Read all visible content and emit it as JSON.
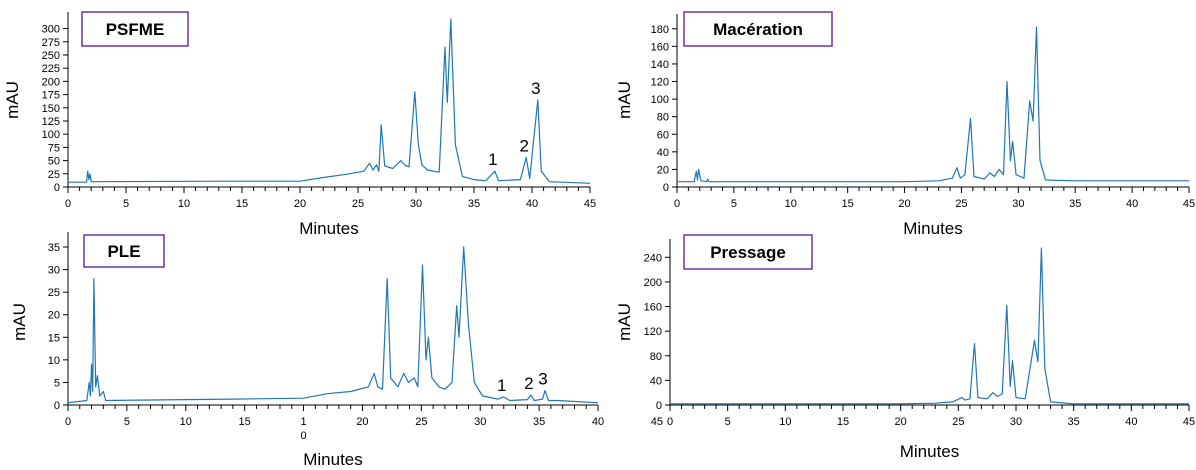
{
  "chart_data": [
    {
      "type": "line",
      "title": "PSFME",
      "xlabel": "Minutes",
      "ylabel": "mAU",
      "xlim": [
        0,
        45
      ],
      "ylim": [
        0,
        320
      ],
      "x_ticks": [
        "0",
        "5",
        "10",
        "15",
        "20",
        "25",
        "30",
        "35",
        "40",
        "45"
      ],
      "y_ticks": [
        "0",
        "25",
        "50",
        "75",
        "100",
        "125",
        "150",
        "175",
        "200",
        "225",
        "250",
        "275",
        "300"
      ],
      "line_color": "#1f77b4",
      "baseline": 8,
      "points": [
        [
          0,
          9
        ],
        [
          1.6,
          9
        ],
        [
          1.7,
          30
        ],
        [
          1.8,
          14
        ],
        [
          1.9,
          25
        ],
        [
          2.0,
          10
        ],
        [
          14,
          11
        ],
        [
          20,
          11
        ],
        [
          22,
          18
        ],
        [
          24,
          24
        ],
        [
          25.5,
          30
        ],
        [
          26.0,
          45
        ],
        [
          26.3,
          32
        ],
        [
          26.6,
          42
        ],
        [
          26.8,
          30
        ],
        [
          27.0,
          118
        ],
        [
          27.3,
          40
        ],
        [
          28,
          35
        ],
        [
          28.7,
          50
        ],
        [
          29.0,
          42
        ],
        [
          29.4,
          38
        ],
        [
          29.9,
          180
        ],
        [
          30.2,
          82
        ],
        [
          30.5,
          42
        ],
        [
          31,
          32
        ],
        [
          32,
          28
        ],
        [
          32.5,
          265
        ],
        [
          32.7,
          160
        ],
        [
          33.0,
          318
        ],
        [
          33.4,
          80
        ],
        [
          34,
          20
        ],
        [
          35,
          14
        ],
        [
          36,
          12
        ],
        [
          36.8,
          30
        ],
        [
          37.1,
          12
        ],
        [
          39,
          14
        ],
        [
          39.5,
          56
        ],
        [
          39.8,
          16
        ],
        [
          40.5,
          165
        ],
        [
          40.8,
          30
        ],
        [
          41.5,
          10
        ],
        [
          45,
          7
        ]
      ],
      "annotations": [
        {
          "text": "1",
          "x": 36.8,
          "y": 30
        },
        {
          "text": "2",
          "x": 39.5,
          "y": 56
        },
        {
          "text": "3",
          "x": 40.5,
          "y": 165
        }
      ]
    },
    {
      "type": "line",
      "title": "Macération",
      "xlabel": "Minutes",
      "ylabel": "mAU",
      "xlim": [
        0,
        45
      ],
      "ylim": [
        0,
        190
      ],
      "x_ticks": [
        "0",
        "5",
        "10",
        "15",
        "20",
        "25",
        "30",
        "35",
        "40",
        "45"
      ],
      "y_ticks": [
        "0",
        "20",
        "40",
        "60",
        "80",
        "100",
        "120",
        "140",
        "160",
        "180"
      ],
      "line_color": "#1f77b4",
      "baseline": 6,
      "points": [
        [
          0,
          6
        ],
        [
          1.5,
          6
        ],
        [
          1.7,
          18
        ],
        [
          1.8,
          8
        ],
        [
          1.9,
          20
        ],
        [
          2.1,
          7
        ],
        [
          2.6,
          6
        ],
        [
          2.7,
          9
        ],
        [
          2.8,
          6
        ],
        [
          20,
          6
        ],
        [
          23,
          7
        ],
        [
          24.2,
          10
        ],
        [
          24.6,
          22
        ],
        [
          24.9,
          10
        ],
        [
          25.3,
          14
        ],
        [
          25.8,
          78
        ],
        [
          26.1,
          12
        ],
        [
          27,
          9
        ],
        [
          27.5,
          16
        ],
        [
          27.9,
          12
        ],
        [
          28.3,
          20
        ],
        [
          28.7,
          14
        ],
        [
          29.0,
          120
        ],
        [
          29.3,
          30
        ],
        [
          29.5,
          52
        ],
        [
          29.8,
          14
        ],
        [
          30.5,
          10
        ],
        [
          31.0,
          98
        ],
        [
          31.3,
          75
        ],
        [
          31.6,
          182
        ],
        [
          31.9,
          30
        ],
        [
          32.4,
          8
        ],
        [
          35,
          7
        ],
        [
          45,
          7
        ]
      ],
      "annotations": []
    },
    {
      "type": "line",
      "title": "PLE",
      "xlabel": "Minutes",
      "ylabel": "mAU",
      "xlim": [
        0,
        45
      ],
      "ylim": [
        0,
        37
      ],
      "x_ticks": [
        "0",
        "5",
        "10",
        "15",
        "1\n0",
        "20",
        "25",
        "30",
        "35",
        "40",
        "45"
      ],
      "y_ticks": [
        "0",
        "5",
        "10",
        "15",
        "20",
        "25",
        "30",
        "35"
      ],
      "line_color": "#1f77b4",
      "baseline": 0.5,
      "points": [
        [
          0,
          0.5
        ],
        [
          1.6,
          1
        ],
        [
          1.8,
          5
        ],
        [
          1.9,
          2
        ],
        [
          2.0,
          9
        ],
        [
          2.1,
          3
        ],
        [
          2.2,
          28
        ],
        [
          2.35,
          4
        ],
        [
          2.5,
          6.5
        ],
        [
          2.7,
          2
        ],
        [
          3.0,
          3
        ],
        [
          3.2,
          1
        ],
        [
          14,
          1.3
        ],
        [
          20,
          1.5
        ],
        [
          22,
          2.5
        ],
        [
          24,
          3
        ],
        [
          25.5,
          4
        ],
        [
          26,
          7
        ],
        [
          26.3,
          4
        ],
        [
          26.7,
          3.5
        ],
        [
          27.1,
          28
        ],
        [
          27.4,
          6
        ],
        [
          28.0,
          4
        ],
        [
          28.5,
          7
        ],
        [
          28.9,
          5
        ],
        [
          29.4,
          6
        ],
        [
          29.7,
          4
        ],
        [
          30.1,
          31
        ],
        [
          30.4,
          10
        ],
        [
          30.6,
          15
        ],
        [
          30.9,
          6
        ],
        [
          31.5,
          4
        ],
        [
          32.0,
          3.5
        ],
        [
          32.6,
          5
        ],
        [
          33.0,
          22
        ],
        [
          33.2,
          15
        ],
        [
          33.6,
          35
        ],
        [
          34.0,
          18
        ],
        [
          34.5,
          5
        ],
        [
          35.2,
          2
        ],
        [
          36.5,
          1.3
        ],
        [
          37.0,
          1.8
        ],
        [
          37.5,
          1
        ],
        [
          39.0,
          1.2
        ],
        [
          39.3,
          2.2
        ],
        [
          39.6,
          1
        ],
        [
          40.3,
          1.3
        ],
        [
          40.5,
          3.2
        ],
        [
          40.8,
          1
        ],
        [
          41.5,
          1
        ],
        [
          45,
          0.5
        ]
      ],
      "annotations": [
        {
          "text": "1",
          "x": 37.0,
          "y": 1.8
        },
        {
          "text": "2",
          "x": 39.3,
          "y": 2.2
        },
        {
          "text": "3",
          "x": 40.5,
          "y": 3.2
        }
      ]
    },
    {
      "type": "line",
      "title": "Pressage",
      "xlabel": "Minutes",
      "ylabel": "mAU",
      "xlim": [
        0,
        45
      ],
      "ylim": [
        0,
        260
      ],
      "x_ticks": [
        "0",
        "5",
        "10",
        "15",
        "20",
        "25",
        "30",
        "35",
        "40",
        "45"
      ],
      "y_ticks": [
        "0",
        "40",
        "80",
        "120",
        "160",
        "200",
        "240"
      ],
      "line_color": "#1f77b4",
      "baseline": 2,
      "points": [
        [
          0,
          2
        ],
        [
          20,
          2
        ],
        [
          23,
          3
        ],
        [
          24.5,
          5
        ],
        [
          25.3,
          12
        ],
        [
          25.6,
          8
        ],
        [
          26.0,
          10
        ],
        [
          26.4,
          100
        ],
        [
          26.7,
          12
        ],
        [
          27.5,
          10
        ],
        [
          28,
          20
        ],
        [
          28.4,
          14
        ],
        [
          28.8,
          18
        ],
        [
          29.2,
          162
        ],
        [
          29.5,
          30
        ],
        [
          29.7,
          72
        ],
        [
          30.0,
          12
        ],
        [
          30.8,
          10
        ],
        [
          31.6,
          105
        ],
        [
          31.9,
          70
        ],
        [
          32.2,
          255
        ],
        [
          32.5,
          60
        ],
        [
          33.0,
          5
        ],
        [
          35,
          2
        ],
        [
          45,
          2
        ]
      ],
      "annotations": []
    }
  ]
}
